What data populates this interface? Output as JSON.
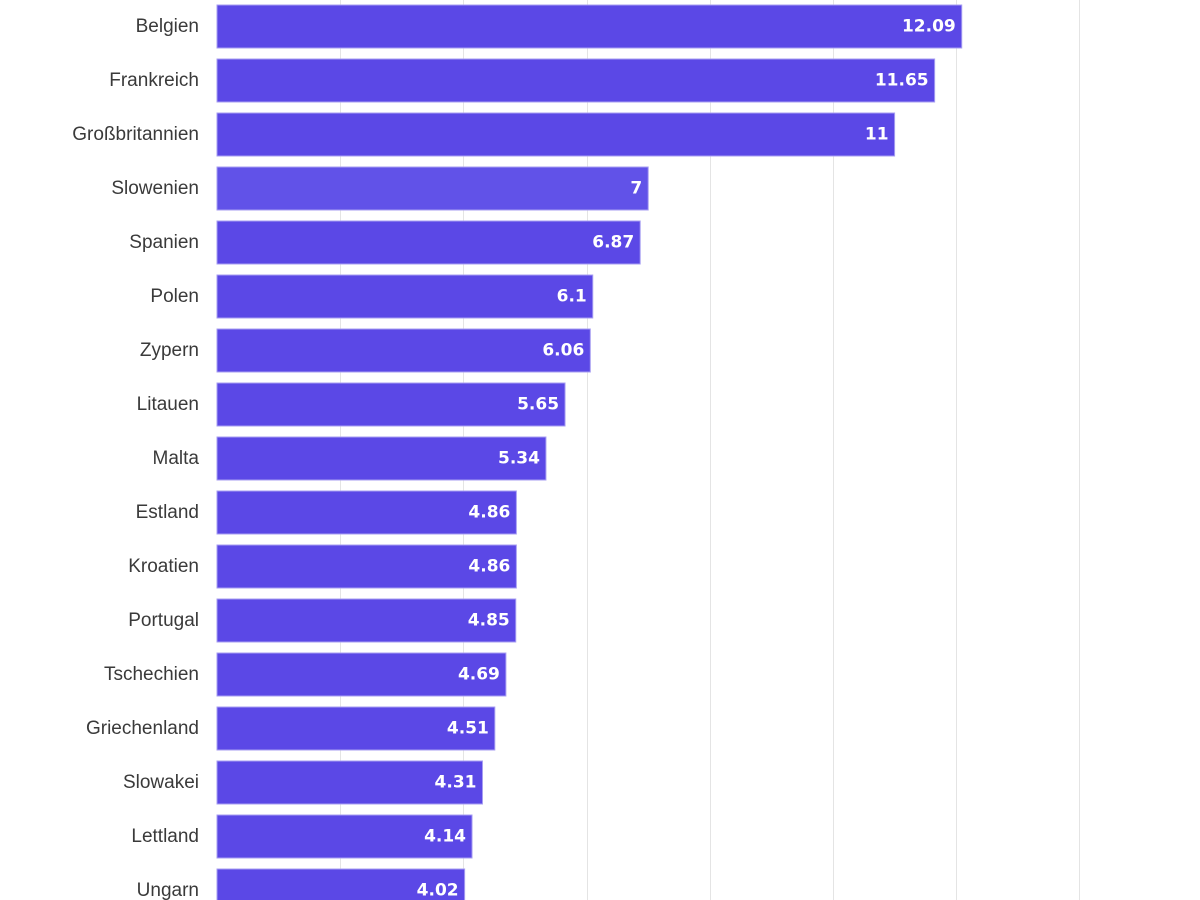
{
  "chart_data": {
    "type": "bar",
    "orientation": "horizontal",
    "categories": [
      "Belgien",
      "Frankreich",
      "Großbritannien",
      "Slowenien",
      "Spanien",
      "Polen",
      "Zypern",
      "Litauen",
      "Malta",
      "Estland",
      "Kroatien",
      "Portugal",
      "Tschechien",
      "Griechenland",
      "Slowakei",
      "Lettland",
      "Ungarn"
    ],
    "series": [
      {
        "values": [
          12.09,
          11.65,
          11,
          7,
          6.87,
          6.1,
          6.06,
          5.65,
          5.34,
          4.86,
          4.86,
          4.85,
          4.69,
          4.51,
          4.31,
          4.14,
          4.02
        ],
        "value_labels": [
          "12.09",
          "11.65",
          "11",
          "7",
          "6.87",
          "6.1",
          "6.06",
          "5.65",
          "5.34",
          "4.86",
          "4.86",
          "4.85",
          "4.69",
          "4.51",
          "4.31",
          "4.14",
          "4.02"
        ]
      }
    ],
    "title": "",
    "xlabel": "",
    "ylabel": "",
    "xlim": [
      0,
      14
    ],
    "grid": true,
    "grid_axis": "x",
    "legend": "none",
    "colors": {
      "bar": "#5b48e6",
      "bar_highlight": "#6152e8",
      "bar_edge": "#a79ef2",
      "grid": "#e4e4e4",
      "category_text": "#3a3a3a",
      "value_text": "#ffffff"
    }
  }
}
